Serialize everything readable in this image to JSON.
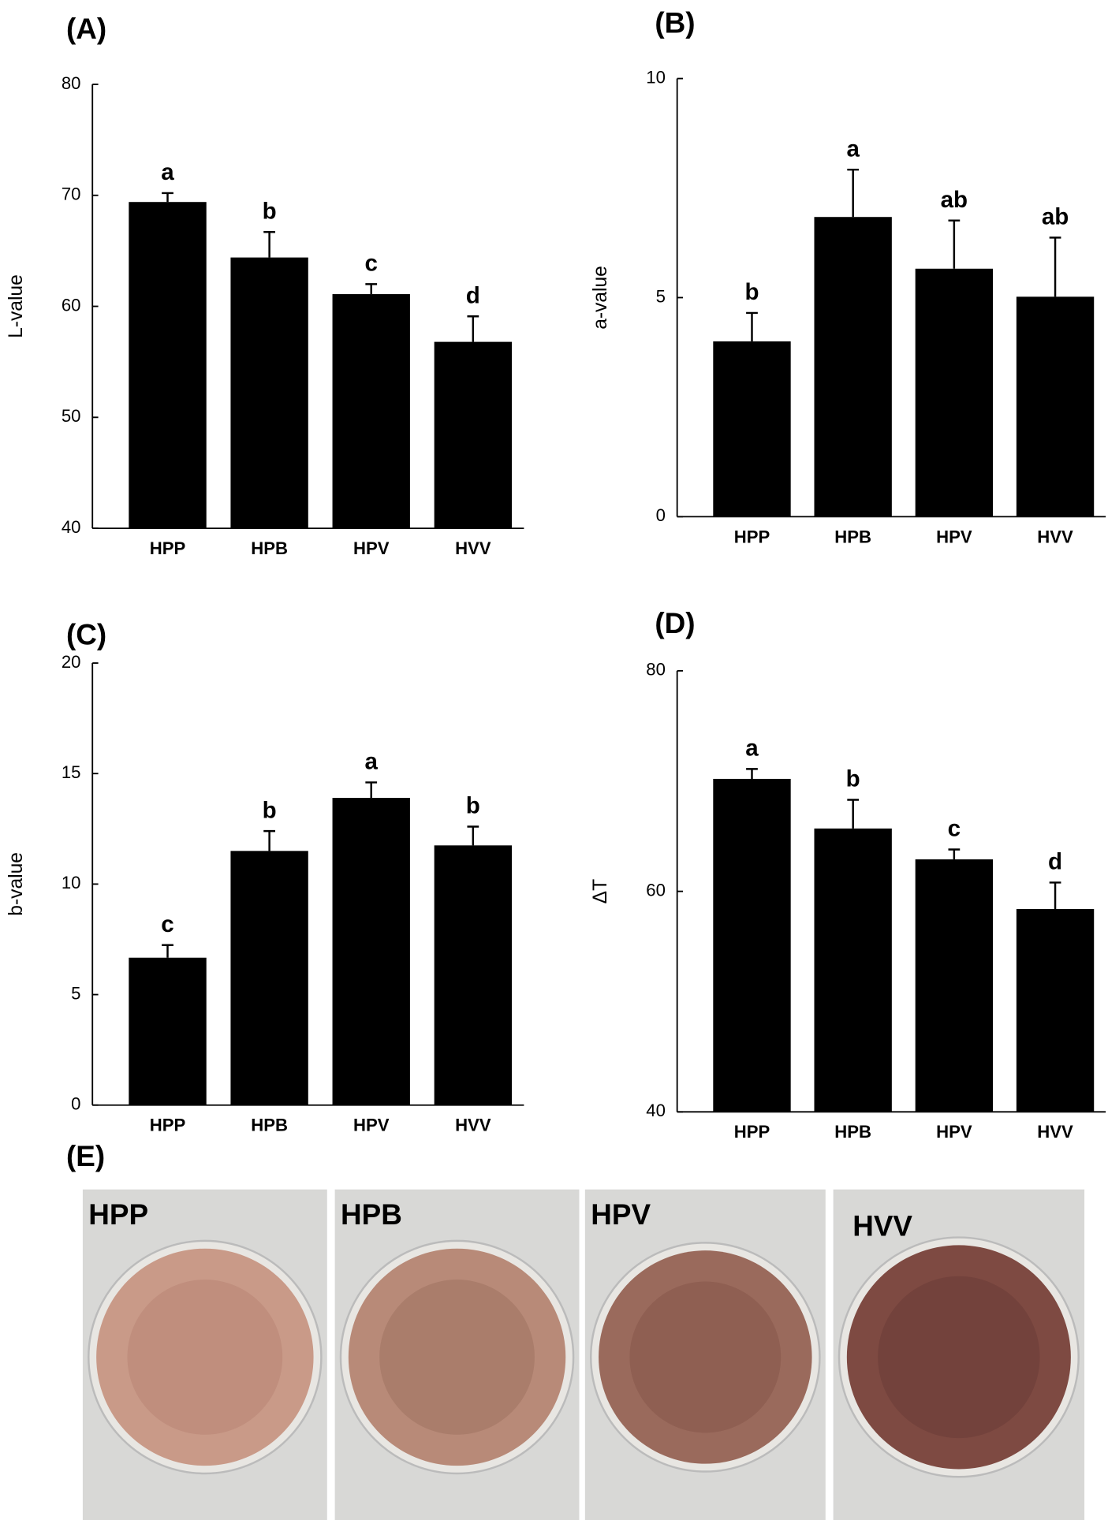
{
  "chart_data": [
    {
      "type": "bar",
      "title": "(A)",
      "y_label": "L-value",
      "categories": [
        "HPP",
        "HPB",
        "HPV",
        "HVV"
      ],
      "values": [
        69.4,
        64.4,
        61.1,
        56.8
      ],
      "errors": [
        0.8,
        2.3,
        0.9,
        2.3
      ],
      "annotations": [
        "a",
        "b",
        "c",
        "d"
      ],
      "color": "#000000",
      "ylim": [
        40,
        80
      ],
      "yticks": [
        40,
        50,
        60,
        70,
        80
      ]
    },
    {
      "type": "bar",
      "title": "(B)",
      "y_label": "a-value",
      "categories": [
        "HPP",
        "HPB",
        "HPV",
        "HVV"
      ],
      "values": [
        4.0,
        6.84,
        5.66,
        5.02
      ],
      "errors": [
        0.65,
        1.08,
        1.1,
        1.35
      ],
      "annotations": [
        "b",
        "a",
        "ab",
        "ab"
      ],
      "color": "#000000",
      "ylim": [
        0,
        10
      ],
      "yticks": [
        0,
        5,
        10
      ]
    },
    {
      "type": "bar",
      "title": "(C)",
      "y_label": "b-value",
      "categories": [
        "HPP",
        "HPB",
        "HPV",
        "HVV"
      ],
      "values": [
        6.67,
        11.5,
        13.9,
        11.75
      ],
      "errors": [
        0.57,
        0.9,
        0.7,
        0.85
      ],
      "annotations": [
        "c",
        "b",
        "a",
        "b"
      ],
      "color": "#000000",
      "ylim": [
        0,
        20
      ],
      "yticks": [
        0,
        5,
        10,
        15,
        20
      ]
    },
    {
      "type": "bar",
      "title": "(D)",
      "y_label": "ΔT",
      "categories": [
        "HPP",
        "HPB",
        "HPV",
        "HVV"
      ],
      "values": [
        70.2,
        65.7,
        62.9,
        58.4
      ],
      "errors": [
        0.9,
        2.6,
        0.9,
        2.4
      ],
      "annotations": [
        "a",
        "b",
        "c",
        "d"
      ],
      "color": "#000000",
      "ylim": [
        40,
        80
      ],
      "yticks": [
        40,
        60,
        80
      ]
    }
  ],
  "photos": {
    "title": "(E)",
    "labels": [
      "HPP",
      "HPB",
      "HPV",
      "HVV"
    ]
  }
}
